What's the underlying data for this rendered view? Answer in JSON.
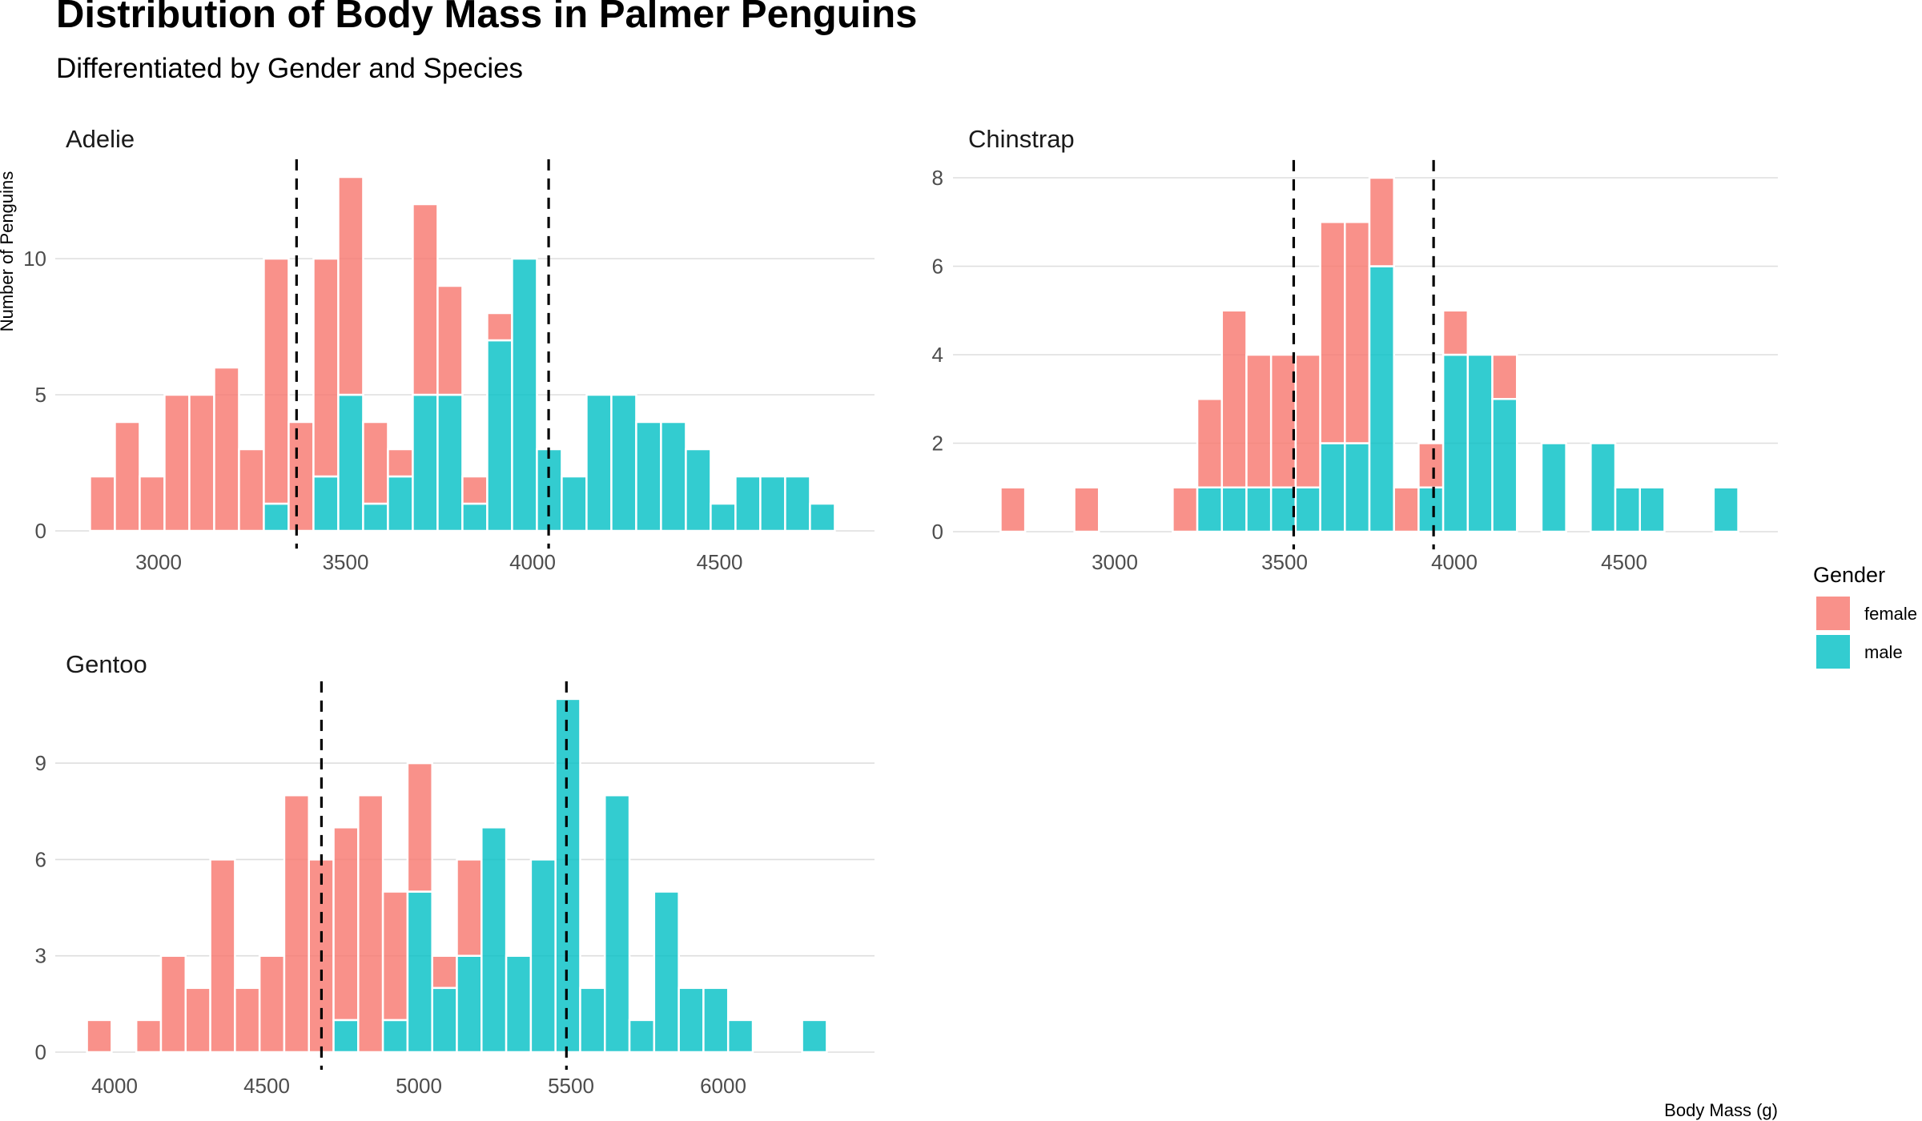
{
  "chart_data": {
    "type": "bar",
    "subtype": "stacked histogram, faceted",
    "title": "Distribution of Body Mass in Palmer Penguins",
    "subtitle": "Differentiated by Gender and Species",
    "xlabel": "Body Mass (g)",
    "ylabel": "Number of Penguins",
    "grid": "horizontal major",
    "legend": {
      "title": "Gender",
      "placement": "right",
      "entries": [
        {
          "name": "female",
          "color": "#F8766D"
        },
        {
          "name": "male",
          "color": "#00BFC4"
        }
      ]
    },
    "panels": [
      {
        "name": "Adelie",
        "x_ticks": [
          3000,
          3500,
          4000,
          4500
        ],
        "y_ticks": [
          0,
          5,
          10
        ],
        "bin_start": 2850,
        "bin_end": 4775,
        "bin_count": 30,
        "female": [
          2,
          4,
          2,
          5,
          5,
          6,
          3,
          9,
          4,
          8,
          8,
          3,
          1,
          7,
          4,
          1,
          1,
          0,
          0,
          0,
          0,
          0,
          0,
          0,
          0,
          0,
          0,
          0,
          0,
          0
        ],
        "male": [
          0,
          0,
          0,
          0,
          0,
          0,
          0,
          1,
          0,
          2,
          5,
          1,
          2,
          5,
          5,
          1,
          7,
          10,
          3,
          2,
          5,
          5,
          4,
          4,
          3,
          1,
          2,
          2,
          2,
          1
        ],
        "mean_lines": [
          {
            "gender": "female",
            "value": 3369
          },
          {
            "gender": "male",
            "value": 4043
          }
        ]
      },
      {
        "name": "Chinstrap",
        "x_ticks": [
          3000,
          3500,
          4000,
          4500
        ],
        "y_ticks": [
          0,
          2,
          4,
          6,
          8
        ],
        "bin_start": 2700,
        "bin_end": 4800,
        "bin_count": 30,
        "female": [
          1,
          0,
          0,
          1,
          0,
          0,
          0,
          1,
          2,
          4,
          3,
          3,
          3,
          5,
          5,
          2,
          1,
          1,
          1,
          0,
          1,
          0,
          0,
          0,
          0,
          0,
          0,
          0,
          0,
          0
        ],
        "male": [
          0,
          0,
          0,
          0,
          0,
          0,
          0,
          0,
          1,
          1,
          1,
          1,
          1,
          2,
          2,
          6,
          0,
          1,
          4,
          4,
          3,
          0,
          2,
          0,
          2,
          1,
          1,
          0,
          0,
          1
        ],
        "mean_lines": [
          {
            "gender": "female",
            "value": 3527
          },
          {
            "gender": "male",
            "value": 3939
          }
        ]
      },
      {
        "name": "Gentoo",
        "x_ticks": [
          4000,
          4500,
          5000,
          5500,
          6000
        ],
        "y_ticks": [
          0,
          3,
          6,
          9
        ],
        "bin_start": 3950,
        "bin_end": 6300,
        "bin_count": 30,
        "female": [
          1,
          0,
          1,
          3,
          2,
          6,
          2,
          3,
          8,
          6,
          6,
          8,
          4,
          4,
          1,
          3,
          0,
          0,
          0,
          0,
          0,
          0,
          0,
          0,
          0,
          0,
          0,
          0,
          0,
          0
        ],
        "male": [
          0,
          0,
          0,
          0,
          0,
          0,
          0,
          0,
          0,
          0,
          1,
          0,
          1,
          5,
          2,
          3,
          7,
          3,
          6,
          11,
          2,
          8,
          1,
          5,
          2,
          2,
          1,
          0,
          0,
          1
        ],
        "mean_lines": [
          {
            "gender": "female",
            "value": 4680
          },
          {
            "gender": "male",
            "value": 5485
          }
        ]
      }
    ]
  }
}
